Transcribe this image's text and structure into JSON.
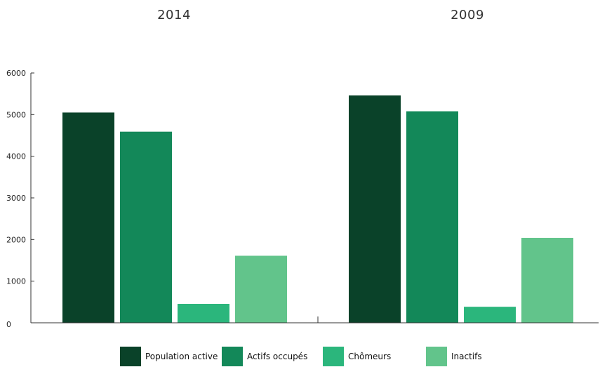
{
  "chart_data": {
    "type": "bar",
    "categories": [
      "2014",
      "2009"
    ],
    "series": [
      {
        "name": "Population active",
        "values": [
          5050,
          5460
        ],
        "color": "#0a4229"
      },
      {
        "name": "Actifs occupés",
        "values": [
          4590,
          5080
        ],
        "color": "#138859"
      },
      {
        "name": "Chômeurs",
        "values": [
          455,
          385
        ],
        "color": "#2bb67c"
      },
      {
        "name": "Inactifs",
        "values": [
          1610,
          2040
        ],
        "color": "#62c48b"
      }
    ],
    "y_ticks": [
      "0",
      "1000",
      "2000",
      "3000",
      "4000",
      "5000",
      "6000"
    ],
    "ylim": [
      0,
      6000
    ],
    "grid": false,
    "legend_position": "bottom"
  }
}
